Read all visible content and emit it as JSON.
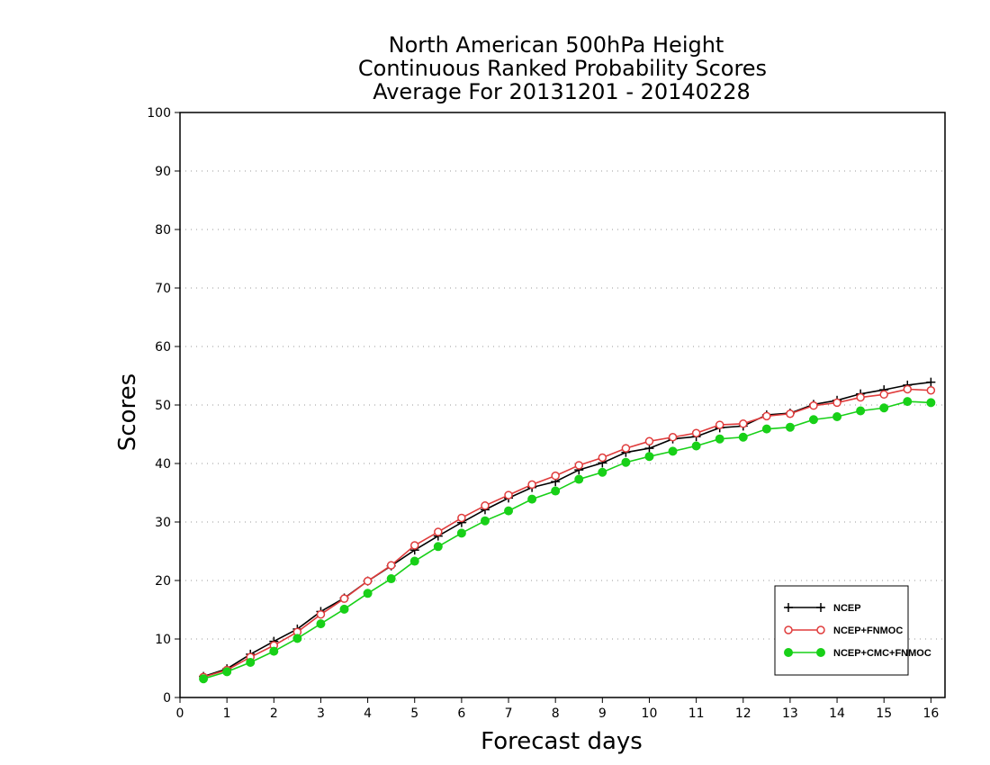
{
  "chart_data": {
    "type": "line",
    "title": [
      "North American 500hPa Height",
      "Continuous Ranked Probability Scores",
      "Average For 20131201 - 20140228"
    ],
    "xlabel": "Forecast days",
    "ylabel": "Scores",
    "xlim": [
      0,
      16.3
    ],
    "ylim": [
      0,
      100
    ],
    "x_ticks": [
      0,
      1,
      2,
      3,
      4,
      5,
      6,
      7,
      8,
      9,
      10,
      11,
      12,
      13,
      14,
      15,
      16
    ],
    "y_ticks": [
      0,
      10,
      20,
      30,
      40,
      50,
      60,
      70,
      80,
      90,
      100
    ],
    "grid": "horizontal dotted",
    "legend_position": "bottom-right",
    "x": [
      0.5,
      1,
      1.5,
      2,
      2.5,
      3,
      3.5,
      4,
      4.5,
      5,
      5.5,
      6,
      6.5,
      7,
      7.5,
      8,
      8.5,
      9,
      9.5,
      10,
      10.5,
      11,
      11.5,
      12,
      12.5,
      13,
      13.5,
      14,
      14.5,
      15,
      15.5,
      16
    ],
    "series": [
      {
        "name": "NCEP",
        "color": "#000000",
        "marker": "plus",
        "values": [
          3.6,
          4.9,
          7.4,
          9.6,
          11.7,
          14.7,
          17.0,
          19.9,
          22.5,
          25.2,
          27.6,
          29.9,
          32.1,
          34.1,
          35.9,
          36.9,
          38.9,
          40.1,
          41.9,
          42.6,
          44.2,
          44.6,
          46.1,
          46.4,
          48.3,
          48.6,
          50.1,
          50.8,
          51.9,
          52.6,
          53.4,
          53.9
        ]
      },
      {
        "name": "NCEP+FNMOC",
        "color": "#e03c3c",
        "marker": "open-circle",
        "values": [
          3.5,
          4.7,
          6.9,
          8.9,
          11.2,
          14.2,
          16.9,
          19.9,
          22.6,
          26.0,
          28.3,
          30.7,
          32.8,
          34.6,
          36.4,
          37.9,
          39.7,
          41.0,
          42.6,
          43.8,
          44.5,
          45.2,
          46.6,
          46.8,
          48.1,
          48.5,
          49.9,
          50.4,
          51.3,
          51.8,
          52.7,
          52.5
        ]
      },
      {
        "name": "NCEP+CMC+FNMOC",
        "color": "#18d018",
        "marker": "filled-circle",
        "values": [
          3.2,
          4.4,
          6.0,
          7.9,
          10.1,
          12.6,
          15.1,
          17.8,
          20.3,
          23.3,
          25.8,
          28.1,
          30.2,
          31.9,
          33.9,
          35.3,
          37.3,
          38.5,
          40.2,
          41.2,
          42.1,
          43.0,
          44.2,
          44.5,
          45.9,
          46.2,
          47.5,
          48.0,
          49.0,
          49.5,
          50.6,
          50.4
        ]
      }
    ]
  }
}
